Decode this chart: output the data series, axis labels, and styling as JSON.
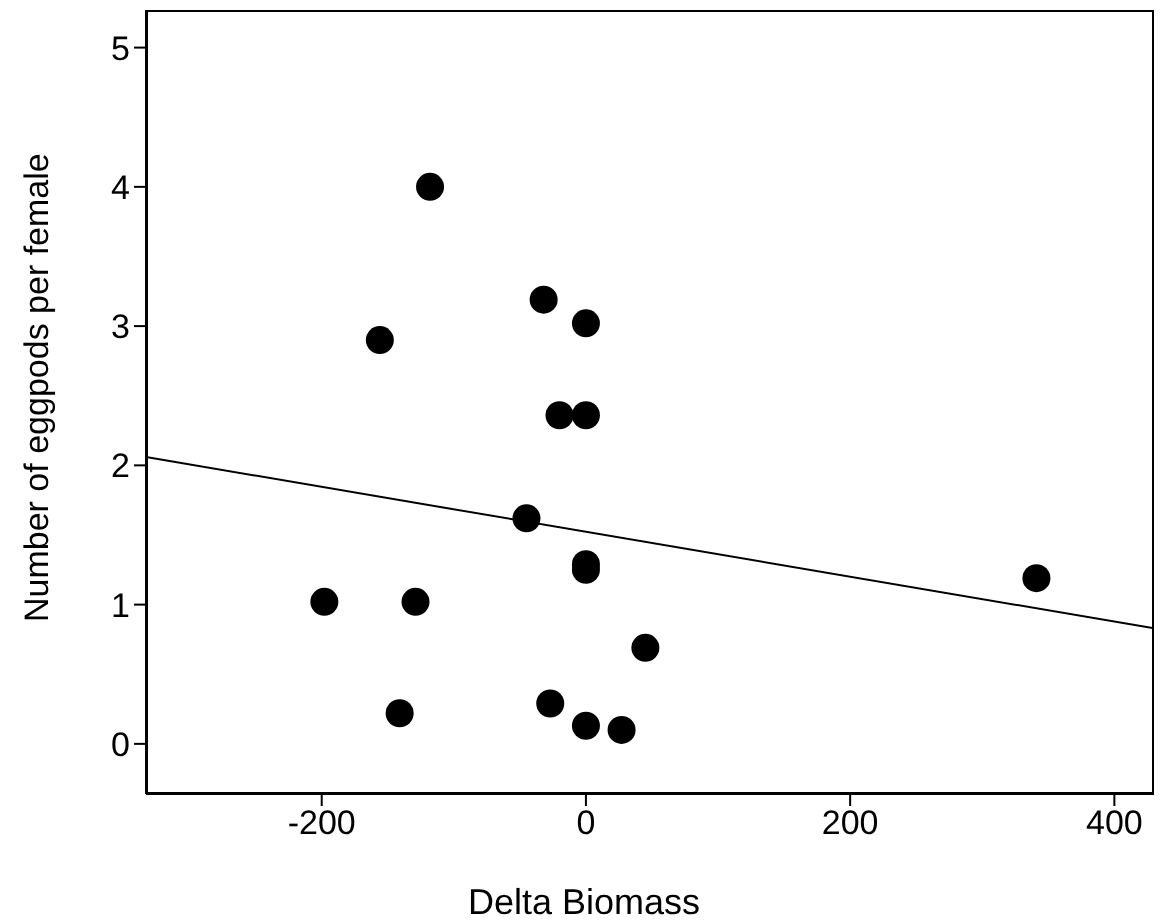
{
  "chart_data": {
    "type": "scatter",
    "xlabel": "Delta Biomass",
    "ylabel": "Number of eggpods per female",
    "xlim": [
      -333,
      430
    ],
    "xticks": [
      -200,
      0,
      200,
      400
    ],
    "ylim": [
      -0.36,
      5.27
    ],
    "yticks": [
      0,
      1,
      2,
      3,
      4,
      5
    ],
    "grid": false,
    "legend": false,
    "series": [
      {
        "color": "#000000",
        "marker": "circle",
        "x": [
          -118,
          -32,
          0,
          -156,
          -20,
          0,
          -45,
          0,
          0,
          -198,
          -129,
          341,
          45,
          -141,
          -27,
          0,
          27
        ],
        "values": [
          4.0,
          3.19,
          3.02,
          2.9,
          2.36,
          2.36,
          1.62,
          1.29,
          1.25,
          1.02,
          1.02,
          1.19,
          0.69,
          0.22,
          0.29,
          0.13,
          0.1
        ]
      },
      {
        "type": "line",
        "color": "#000000",
        "x": [
          -333,
          430
        ],
        "values": [
          2.06,
          0.83
        ],
        "line_style": "solid"
      }
    ]
  }
}
